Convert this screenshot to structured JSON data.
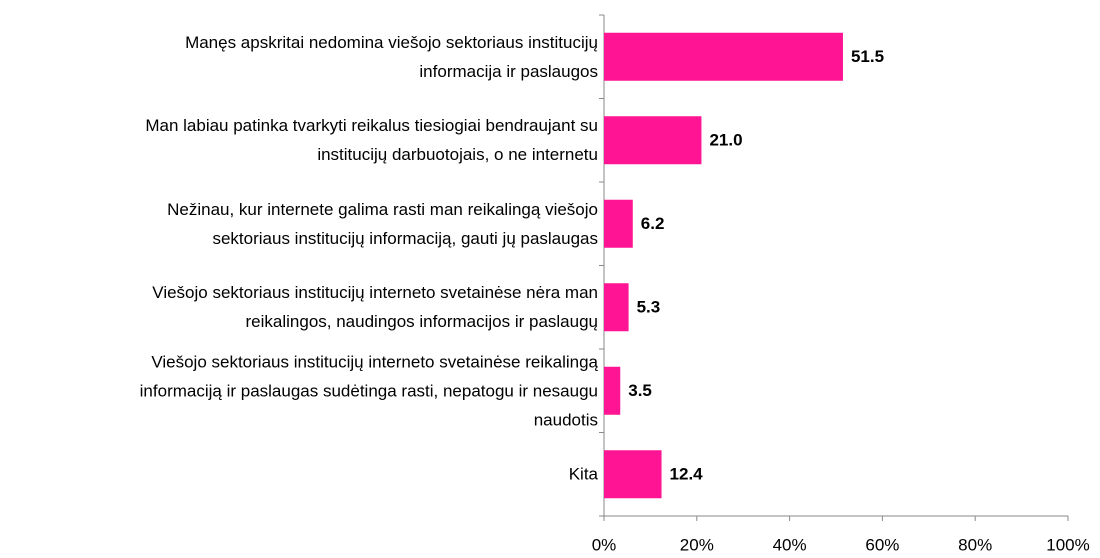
{
  "chart_data": {
    "type": "barh",
    "categories": [
      "Manęs apskritai nedomina viešojo sektoriaus institucijų\ninformacija ir paslaugos",
      "Man labiau patinka tvarkyti reikalus tiesiogiai bendraujant su\ninstitucijų darbuotojais, o ne internetu",
      "Nežinau, kur internete galima rasti man reikalingą viešojo\nsektoriaus institucijų informaciją, gauti jų paslaugas",
      "Viešojo sektoriaus institucijų interneto svetainėse nėra man\nreikalingos, naudingos informacijos ir paslaugų",
      "Viešojo sektoriaus institucijų interneto svetainėse reikalingą\ninformaciją ir paslaugas sudėtinga rasti, nepatogu ir nesaugu\nnaudotis",
      "Kita"
    ],
    "values": [
      51.5,
      21.0,
      6.2,
      5.3,
      3.5,
      12.4
    ],
    "value_labels": [
      "51.5",
      "21.0",
      "6.2",
      "5.3",
      "3.5",
      "12.4"
    ],
    "color": "#ff1493",
    "xlim": [
      0,
      100
    ],
    "xticks": [
      {
        "value": 0,
        "label": "0%"
      },
      {
        "value": 20,
        "label": "20%"
      },
      {
        "value": 40,
        "label": "40%"
      },
      {
        "value": 60,
        "label": "60%"
      },
      {
        "value": 80,
        "label": "80%"
      },
      {
        "value": 100,
        "label": "100%"
      }
    ]
  }
}
